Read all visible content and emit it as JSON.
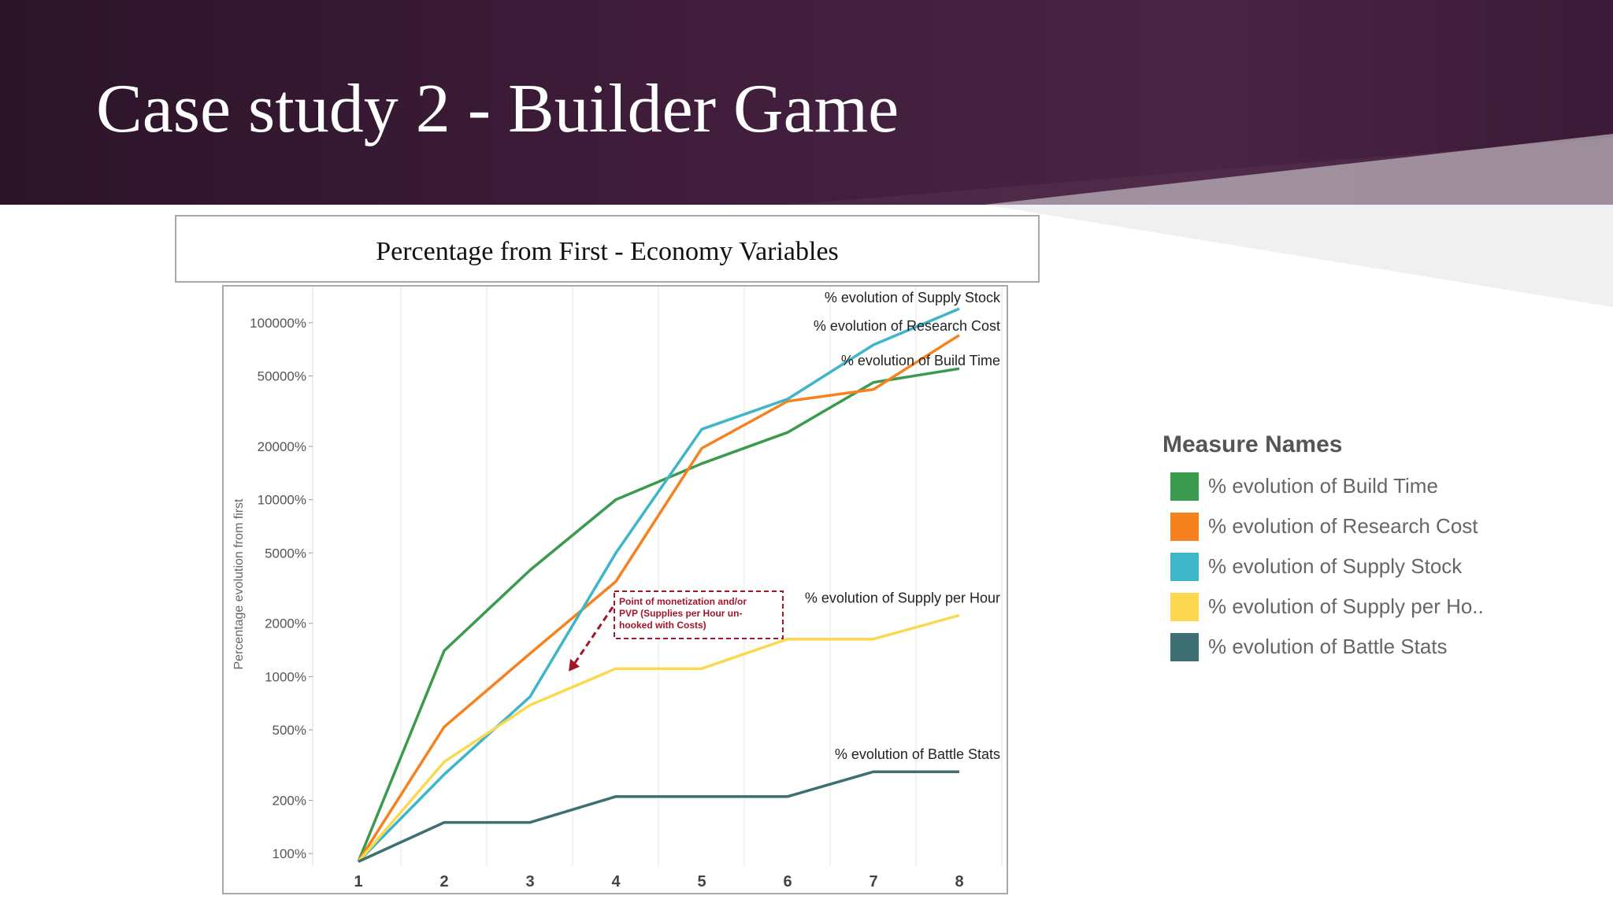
{
  "slide": {
    "title": "Case study 2 - Builder Game"
  },
  "legend": {
    "title": "Measure Names",
    "items": [
      {
        "label": "% evolution of Build Time",
        "color": "#3a9a4d"
      },
      {
        "label": "% evolution of Research Cost",
        "color": "#f5821f"
      },
      {
        "label": "% evolution of Supply Stock",
        "color": "#3fb5c9"
      },
      {
        "label": "% evolution of Supply per Ho..",
        "color": "#fbd850"
      },
      {
        "label": "% evolution of Battle Stats",
        "color": "#3d6f73"
      }
    ]
  },
  "colors": {
    "banner": "#3e1c3a",
    "annotation": "#a3162a",
    "grid": "#e6e6e6",
    "axis_text": "#555555"
  },
  "chart_data": {
    "type": "line",
    "title": "Percentage from First - Economy Variables",
    "xlabel": "",
    "ylabel": "Percentage evolution from first",
    "y_scale": "log",
    "ylim": [
      85,
      160000
    ],
    "x": [
      1,
      2,
      3,
      4,
      5,
      6,
      7,
      8
    ],
    "x_tick_labels": [
      "1",
      "2",
      "3",
      "4",
      "5",
      "6",
      "7",
      "8"
    ],
    "y_ticks": [
      100,
      200,
      500,
      1000,
      2000,
      5000,
      10000,
      20000,
      50000,
      100000
    ],
    "y_tick_labels": [
      "100%",
      "200%",
      "500%",
      "1000%",
      "2000%",
      "5000%",
      "10000%",
      "20000%",
      "50000%",
      "100000%"
    ],
    "grid": true,
    "legend_position": "right",
    "series": [
      {
        "name": "% evolution of Build Time",
        "color": "#3a9a4d",
        "values": [
          90,
          1400,
          4000,
          10000,
          16000,
          24000,
          46000,
          55000
        ]
      },
      {
        "name": "% evolution of Research Cost",
        "color": "#f5821f",
        "values": [
          90,
          520,
          1350,
          3450,
          19500,
          36000,
          42000,
          85000
        ]
      },
      {
        "name": "% evolution of Supply Stock",
        "color": "#3fb5c9",
        "values": [
          90,
          280,
          770,
          5000,
          25000,
          37000,
          75000,
          120000
        ]
      },
      {
        "name": "% evolution of Supply per Hour",
        "color": "#fbd850",
        "values": [
          90,
          330,
          690,
          1110,
          1110,
          1630,
          1630,
          2220
        ]
      },
      {
        "name": "% evolution of Battle Stats",
        "color": "#3d6f73",
        "values": [
          90,
          150,
          150,
          210,
          210,
          210,
          290,
          290
        ]
      }
    ],
    "line_labels": [
      {
        "text": "% evolution of Supply Stock",
        "series": 2
      },
      {
        "text": "% evolution of Research Cost",
        "series": 1
      },
      {
        "text": "% evolution of Build Time",
        "series": 0
      },
      {
        "text": "% evolution of Supply per Hour",
        "series": 3
      },
      {
        "text": "% evolution of Battle Stats",
        "series": 4
      }
    ],
    "annotation": {
      "lines": [
        "Point of monetization and/or",
        "PVP (Supplies per Hour un-",
        "hooked with Costs)"
      ],
      "x": 4,
      "arrow_to": {
        "x": 3.45,
        "y": 1070
      }
    }
  }
}
